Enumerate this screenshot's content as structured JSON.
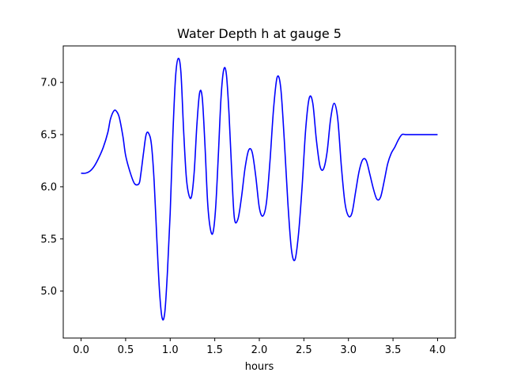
{
  "chart_data": {
    "type": "line",
    "title": "Water Depth h at gauge 5",
    "xlabel": "hours",
    "ylabel": "",
    "xlim": [
      -0.2,
      4.2
    ],
    "ylim": [
      4.55,
      7.35
    ],
    "grid": false,
    "legend": "none",
    "xticks": [
      0.0,
      0.5,
      1.0,
      1.5,
      2.0,
      2.5,
      3.0,
      3.5,
      4.0
    ],
    "xtick_labels": [
      "0.0",
      "0.5",
      "1.0",
      "1.5",
      "2.0",
      "2.5",
      "3.0",
      "3.5",
      "4.0"
    ],
    "yticks": [
      5.0,
      5.5,
      6.0,
      6.5,
      7.0
    ],
    "ytick_labels": [
      "5.0",
      "5.5",
      "6.0",
      "6.5",
      "7.0"
    ],
    "series": [
      {
        "color": "#0000ff",
        "x": [
          0.0,
          0.05,
          0.1,
          0.15,
          0.2,
          0.25,
          0.3,
          0.33,
          0.37,
          0.4,
          0.43,
          0.47,
          0.5,
          0.55,
          0.6,
          0.65,
          0.67,
          0.7,
          0.73,
          0.76,
          0.79,
          0.82,
          0.85,
          0.88,
          0.91,
          0.94,
          0.97,
          1.0,
          1.03,
          1.06,
          1.09,
          1.12,
          1.15,
          1.18,
          1.21,
          1.24,
          1.27,
          1.3,
          1.33,
          1.36,
          1.39,
          1.42,
          1.45,
          1.48,
          1.51,
          1.54,
          1.57,
          1.6,
          1.63,
          1.66,
          1.69,
          1.72,
          1.76,
          1.8,
          1.84,
          1.88,
          1.92,
          1.96,
          2.0,
          2.04,
          2.08,
          2.12,
          2.16,
          2.2,
          2.24,
          2.28,
          2.32,
          2.36,
          2.4,
          2.44,
          2.48,
          2.52,
          2.56,
          2.6,
          2.64,
          2.68,
          2.72,
          2.76,
          2.8,
          2.84,
          2.88,
          2.92,
          2.96,
          3.0,
          3.04,
          3.08,
          3.12,
          3.16,
          3.2,
          3.24,
          3.28,
          3.32,
          3.36,
          3.4,
          3.44,
          3.48,
          3.52,
          3.56,
          3.6,
          3.64,
          3.68,
          3.72,
          3.76,
          3.8,
          3.84,
          3.88,
          3.92,
          3.96,
          4.0
        ],
        "y": [
          6.13,
          6.13,
          6.15,
          6.2,
          6.28,
          6.38,
          6.52,
          6.65,
          6.73,
          6.72,
          6.66,
          6.48,
          6.3,
          6.14,
          6.03,
          6.03,
          6.12,
          6.32,
          6.5,
          6.51,
          6.4,
          6.05,
          5.5,
          5.0,
          4.74,
          4.8,
          5.2,
          5.75,
          6.5,
          7.05,
          7.23,
          7.1,
          6.55,
          6.1,
          5.92,
          5.91,
          6.15,
          6.6,
          6.9,
          6.85,
          6.4,
          5.85,
          5.6,
          5.56,
          5.8,
          6.3,
          6.85,
          7.12,
          7.08,
          6.7,
          6.15,
          5.7,
          5.69,
          5.9,
          6.18,
          6.35,
          6.33,
          6.1,
          5.8,
          5.72,
          5.85,
          6.25,
          6.75,
          7.05,
          6.95,
          6.45,
          5.85,
          5.4,
          5.3,
          5.55,
          6.0,
          6.55,
          6.85,
          6.8,
          6.45,
          6.2,
          6.17,
          6.33,
          6.65,
          6.8,
          6.65,
          6.2,
          5.85,
          5.72,
          5.75,
          5.95,
          6.15,
          6.26,
          6.25,
          6.12,
          5.98,
          5.88,
          5.9,
          6.05,
          6.22,
          6.32,
          6.38,
          6.45,
          6.5,
          6.5,
          6.5,
          6.5,
          6.5,
          6.5,
          6.5,
          6.5,
          6.5,
          6.5,
          6.5
        ]
      }
    ]
  }
}
